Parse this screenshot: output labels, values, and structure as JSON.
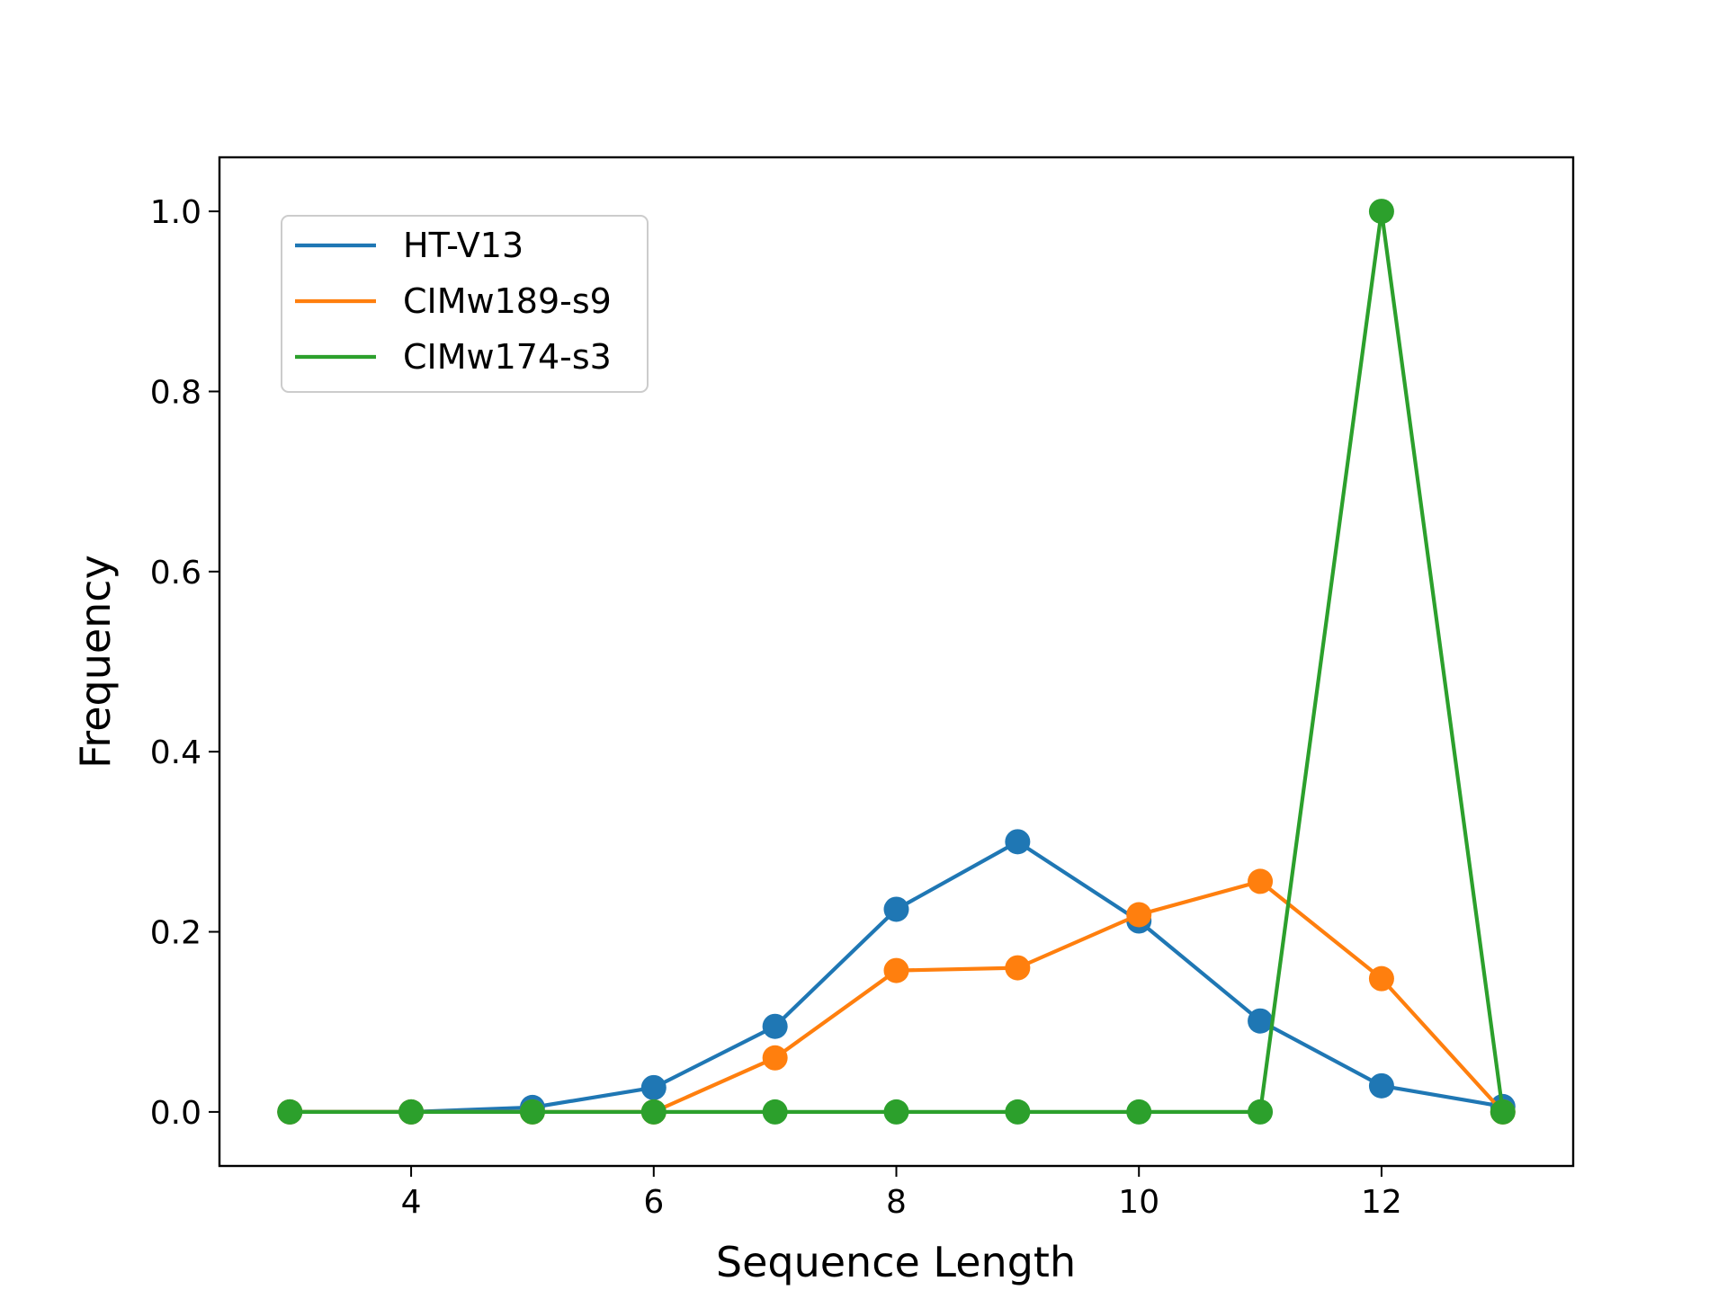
{
  "chart_data": {
    "type": "line",
    "xlabel": "Sequence Length",
    "ylabel": "Frequency",
    "xlim": [
      2.42,
      13.58
    ],
    "ylim": [
      -0.06,
      1.06
    ],
    "xticks": [
      4,
      6,
      8,
      10,
      12
    ],
    "xtick_labels": [
      "4",
      "6",
      "8",
      "10",
      "12"
    ],
    "yticks": [
      0.0,
      0.2,
      0.4,
      0.6,
      0.8,
      1.0
    ],
    "ytick_labels": [
      "0.0",
      "0.2",
      "0.4",
      "0.6",
      "0.8",
      "1.0"
    ],
    "grid": false,
    "legend_position": "upper-left",
    "x": [
      3,
      4,
      5,
      6,
      7,
      8,
      9,
      10,
      11,
      12,
      13
    ],
    "series": [
      {
        "name": "HT-V13",
        "color": "#1f77b4",
        "values": [
          0.0,
          0.0,
          0.005,
          0.027,
          0.095,
          0.225,
          0.3,
          0.212,
          0.101,
          0.029,
          0.006
        ]
      },
      {
        "name": "CIMw189-s9",
        "color": "#ff7f0e",
        "values": [
          0.0,
          0.0,
          0.0,
          0.0,
          0.06,
          0.157,
          0.16,
          0.219,
          0.256,
          0.148,
          0.0
        ]
      },
      {
        "name": "CIMw174-s3",
        "color": "#2ca02c",
        "values": [
          0.0,
          0.0,
          0.0,
          0.0,
          0.0,
          0.0,
          0.0,
          0.0,
          0.0,
          1.0,
          0.0
        ]
      }
    ]
  }
}
